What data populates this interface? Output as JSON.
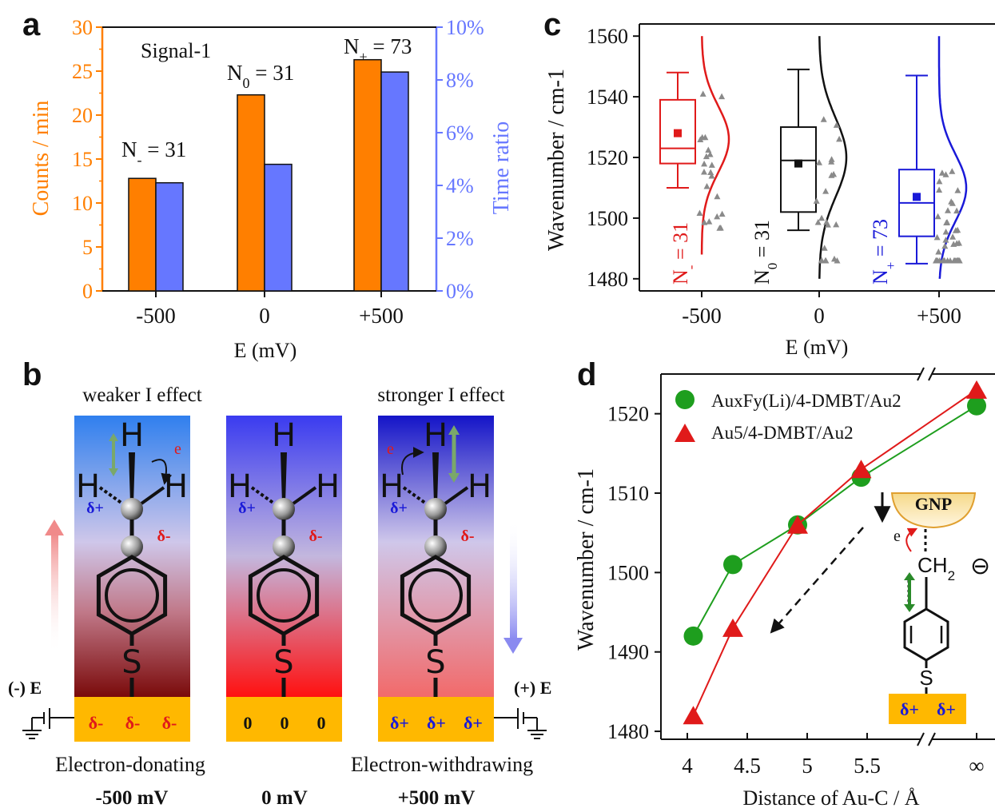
{
  "panel_labels": {
    "a": "a",
    "b": "b",
    "c": "c",
    "d": "d"
  },
  "colors": {
    "orange": "#ff7f00",
    "blue_bar": "#6677ff",
    "red": "#e01a1a",
    "black": "#111111",
    "blue": "#1a1ad8",
    "green": "#1e9e1e",
    "gold": "#ffb800",
    "tri_gray": "#8a8a8a"
  },
  "panel_a": {
    "left_ticks": [
      "0",
      "5",
      "10",
      "15",
      "20",
      "25",
      "30"
    ],
    "right_ticks": [
      "0%",
      "2%",
      "4%",
      "6%",
      "8%",
      "10%"
    ],
    "signal_label": "Signal-1",
    "ann": [
      {
        "main": "N",
        "sub": "-",
        "rest": " = 31"
      },
      {
        "main": "N",
        "sub": "0",
        "rest": " = 31"
      },
      {
        "main": "N",
        "sub": "+",
        "rest": " = 73"
      }
    ]
  },
  "panel_c": {
    "y_ticks": [
      "1480",
      "1500",
      "1520",
      "1540",
      "1560"
    ],
    "n_labels": [
      {
        "main": "N",
        "sub": "-",
        "rest": " = 31"
      },
      {
        "main": "N",
        "sub": "0",
        "rest": " = 31"
      },
      {
        "main": "N",
        "sub": "+",
        "rest": " = 73"
      }
    ]
  },
  "panel_b": {
    "left_title": "weaker I effect",
    "right_title": "stronger I effect",
    "minus_e": "(-) E",
    "plus_e": "(+) E",
    "atom_h": "H",
    "atom_s": "S",
    "delta_plus": "δ+",
    "delta_minus": "δ-",
    "e_label": "e",
    "surface_left": [
      "δ-",
      "δ-",
      "δ-"
    ],
    "surface_mid": [
      "0",
      "0",
      "0"
    ],
    "surface_right": [
      "δ+",
      "δ+",
      "δ+"
    ],
    "bottom_left": "Electron-donating",
    "bottom_right": "Electron-withdrawing",
    "mv_left": "-500 mV",
    "mv_mid": "0 mV",
    "mv_right": "+500 mV"
  },
  "panel_d": {
    "y_ticks": [
      "1480",
      "1490",
      "1500",
      "1510",
      "1520"
    ],
    "x_ticks": [
      "4",
      "4.5",
      "5",
      "5.5",
      "∞"
    ],
    "inset": {
      "gnp": "GNP",
      "e": "e",
      "ch2": "CH",
      "ch2_sub": "2",
      "ch2_charge": "⊖",
      "s": "S",
      "surface": [
        "δ+",
        "δ+"
      ]
    }
  },
  "chart_data": [
    {
      "type": "bar",
      "panel": "a",
      "categories": [
        "-500",
        "0",
        "+500"
      ],
      "xlabel": "E (mV)",
      "ylabel": "Counts / min",
      "ylabel_right": "Time ratio",
      "ylim": [
        0,
        30
      ],
      "ylim_right": [
        0,
        10
      ],
      "series": [
        {
          "name": "Counts / min",
          "axis": "left",
          "color": "#ff7f00",
          "values": [
            12.8,
            22.3,
            26.3
          ]
        },
        {
          "name": "Time ratio",
          "axis": "right",
          "unit": "%",
          "color": "#6677ff",
          "values": [
            4.1,
            4.8,
            8.3
          ]
        }
      ]
    },
    {
      "type": "box",
      "panel": "c",
      "categories": [
        "-500",
        "0",
        "+500"
      ],
      "xlabel": "E (mV)",
      "ylabel": "Wavenumber / cm-1",
      "ylim": [
        1476,
        1564
      ],
      "boxes": [
        {
          "category": "-500",
          "color": "#e01a1a",
          "whisker_low": 1510,
          "q1": 1518,
          "median": 1523,
          "q3": 1539,
          "whisker_high": 1548,
          "mean": 1528,
          "dist_mean": 1526,
          "dist_sd": 11,
          "dist_range": [
            1488,
            1560
          ]
        },
        {
          "category": "0",
          "color": "#111111",
          "whisker_low": 1496,
          "q1": 1502,
          "median": 1519,
          "q3": 1530,
          "whisker_high": 1549,
          "mean": 1518,
          "dist_mean": 1520,
          "dist_sd": 13,
          "dist_range": [
            1480,
            1560
          ]
        },
        {
          "category": "+500",
          "color": "#1a1ad8",
          "whisker_low": 1485,
          "q1": 1494,
          "median": 1505,
          "q3": 1516,
          "whisker_high": 1547,
          "mean": 1507,
          "dist_mean": 1510,
          "dist_sd": 11,
          "dist_range": [
            1480,
            1560
          ]
        }
      ]
    },
    {
      "type": "line",
      "panel": "d",
      "xlabel": "Distance of Au-C / Å",
      "ylabel": "Wavenumber / cm-1",
      "ylim": [
        1479,
        1525
      ],
      "x_ticks": [
        "4",
        "4.5",
        "5",
        "5.5",
        "∞"
      ],
      "legend_position": "top-left",
      "series": [
        {
          "name": "AuxFy(Li)/4-DMBT/Au2",
          "marker": "circle",
          "color": "#1e9e1e",
          "x": [
            "4.05",
            "4.38",
            "4.92",
            "5.45",
            "∞"
          ],
          "values": [
            1492,
            1501,
            1506,
            1512,
            1521
          ]
        },
        {
          "name": "Au5/4-DMBT/Au2",
          "marker": "triangle",
          "color": "#e01a1a",
          "x": [
            "4.05",
            "4.38",
            "4.92",
            "5.45",
            "∞"
          ],
          "values": [
            1482,
            1493,
            1506,
            1513,
            1523
          ]
        }
      ]
    }
  ]
}
